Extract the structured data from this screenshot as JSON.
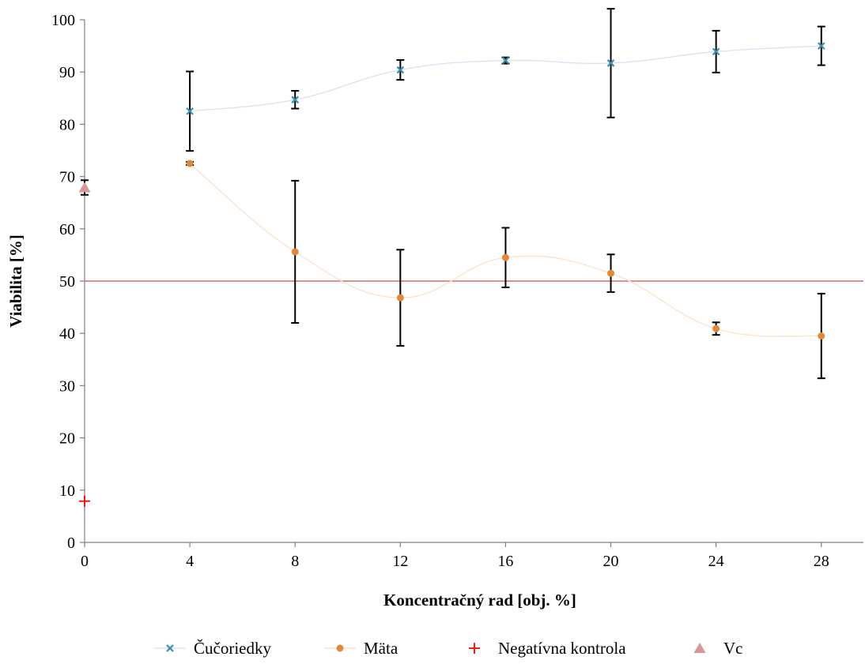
{
  "chart_data": {
    "type": "scatter",
    "xlabel": "Koncentračný rad [obj. %]",
    "ylabel": "Viabilita [%]",
    "xlim": [
      0,
      29.6
    ],
    "ylim": [
      0,
      100
    ],
    "x_ticks": [
      0,
      4,
      8,
      12,
      16,
      20,
      24,
      28
    ],
    "y_ticks": [
      0,
      10,
      20,
      30,
      40,
      50,
      60,
      70,
      80,
      90,
      100
    ],
    "reference_line": {
      "y": 50,
      "color": "#e06666"
    },
    "legend_position": "bottom",
    "series": [
      {
        "name": "Čučoriedky",
        "marker": "x",
        "color": "#3b8ea5",
        "line_color": "#dbe3f3",
        "x": [
          4,
          8,
          12,
          16,
          20,
          24,
          28
        ],
        "y": [
          82.5,
          84.7,
          90.4,
          92.2,
          91.7,
          93.9,
          95.0
        ],
        "err": [
          7.6,
          1.7,
          1.9,
          0.6,
          10.4,
          4.0,
          3.7
        ]
      },
      {
        "name": "Mäta",
        "marker": "circle",
        "color": "#e0893c",
        "line_color": "#fbe3cc",
        "x": [
          4,
          8,
          12,
          16,
          20,
          24,
          28
        ],
        "y": [
          72.5,
          55.6,
          46.8,
          54.5,
          51.5,
          40.9,
          39.5
        ],
        "err": [
          0.3,
          13.6,
          9.2,
          5.7,
          3.6,
          1.2,
          8.1
        ]
      },
      {
        "name": "Negatívna kontrola",
        "marker": "plus",
        "color": "#ff0000",
        "x": [
          0
        ],
        "y": [
          7.9
        ],
        "err": [
          0
        ]
      },
      {
        "name": "Vc",
        "marker": "triangle",
        "color": "#d99694",
        "x": [
          0
        ],
        "y": [
          67.9
        ],
        "err": [
          1.4
        ]
      }
    ]
  }
}
